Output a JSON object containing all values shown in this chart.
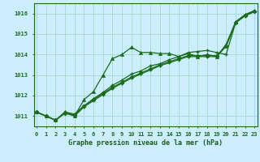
{
  "title": "Graphe pression niveau de la mer (hPa)",
  "bg_color": "#cceeff",
  "grid_color": "#aaddcc",
  "line_color": "#1a6b1a",
  "xmin": 0,
  "xmax": 23,
  "ymin": 1010.5,
  "ymax": 1016.5,
  "yticks": [
    1011,
    1012,
    1013,
    1014,
    1015,
    1016
  ],
  "xticks": [
    0,
    1,
    2,
    3,
    4,
    5,
    6,
    7,
    8,
    9,
    10,
    11,
    12,
    13,
    14,
    15,
    16,
    17,
    18,
    19,
    20,
    21,
    22,
    23
  ],
  "series1_x": [
    0,
    1,
    2,
    3,
    4,
    5,
    6,
    7,
    8,
    9,
    10,
    11,
    12,
    13,
    14,
    15,
    16,
    17,
    18,
    19,
    20,
    21,
    22,
    23
  ],
  "series1_y": [
    1011.2,
    1011.0,
    1010.8,
    1011.2,
    1011.0,
    1011.8,
    1012.2,
    1013.0,
    1013.8,
    1014.0,
    1014.35,
    1014.1,
    1014.1,
    1014.05,
    1014.05,
    1013.9,
    1014.05,
    1013.9,
    1014.0,
    1013.9,
    1014.5,
    1015.6,
    1015.95,
    1016.15
  ],
  "series2_x": [
    0,
    1,
    2,
    3,
    4,
    5,
    6,
    7,
    8,
    9,
    10,
    11,
    12,
    13,
    14,
    15,
    16,
    17,
    18,
    19,
    20,
    21,
    22,
    23
  ],
  "series2_y": [
    1011.2,
    1011.0,
    1010.8,
    1011.15,
    1011.0,
    1011.45,
    1011.75,
    1012.05,
    1012.35,
    1012.6,
    1012.85,
    1013.05,
    1013.25,
    1013.45,
    1013.6,
    1013.75,
    1013.9,
    1013.9,
    1013.9,
    1013.9,
    1014.4,
    1015.55,
    1015.9,
    1016.1
  ],
  "series3_x": [
    0,
    1,
    2,
    3,
    4,
    5,
    6,
    7,
    8,
    9,
    10,
    11,
    12,
    13,
    14,
    15,
    16,
    17,
    18,
    19,
    20,
    21,
    22,
    23
  ],
  "series3_y": [
    1011.2,
    1011.0,
    1010.8,
    1011.15,
    1011.05,
    1011.5,
    1011.8,
    1012.1,
    1012.4,
    1012.65,
    1012.9,
    1013.1,
    1013.3,
    1013.5,
    1013.65,
    1013.8,
    1013.95,
    1013.95,
    1013.95,
    1013.95,
    1014.42,
    1015.57,
    1015.92,
    1016.1
  ],
  "series4_x": [
    0,
    1,
    2,
    3,
    4,
    5,
    6,
    7,
    8,
    9,
    10,
    11,
    12,
    13,
    14,
    15,
    16,
    17,
    18,
    19,
    20,
    21,
    22,
    23
  ],
  "series4_y": [
    1011.2,
    1011.0,
    1010.8,
    1011.2,
    1011.1,
    1011.5,
    1011.85,
    1012.15,
    1012.5,
    1012.75,
    1013.05,
    1013.2,
    1013.45,
    1013.55,
    1013.75,
    1013.9,
    1014.1,
    1014.15,
    1014.2,
    1014.1,
    1014.0,
    1015.55,
    1015.88,
    1016.1
  ]
}
